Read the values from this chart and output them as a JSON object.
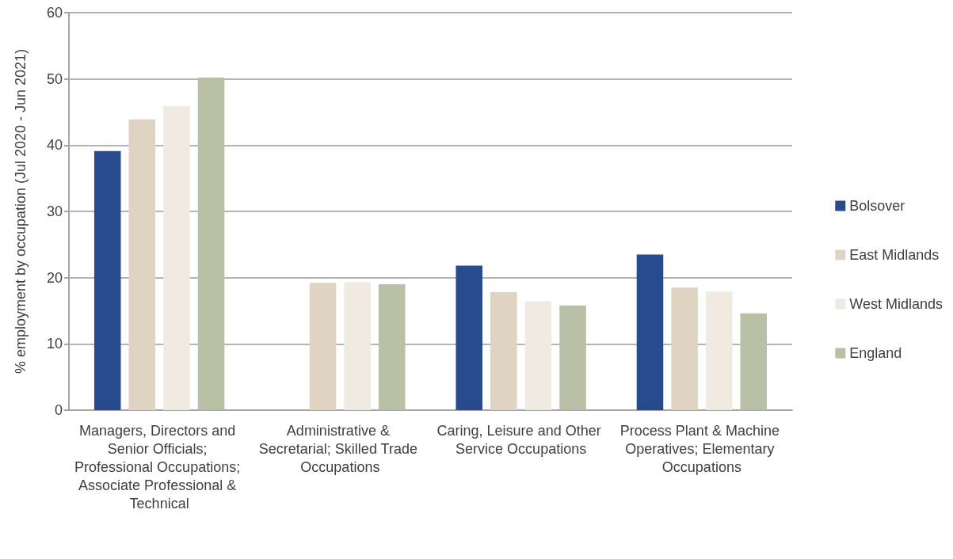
{
  "chart_data": {
    "type": "bar",
    "ylabel": "% employment by occupation (Jul 2020 - Jun 2021)",
    "categories": [
      "Managers, Directors and Senior Officials; Professional Occupations; Associate Professional & Technical",
      "Administrative & Secretarial; Skilled Trade Occupations",
      "Caring, Leisure and Other Service Occupations",
      "Process Plant & Machine Operatives; Elementary Occupations"
    ],
    "series": [
      {
        "name": "Bolsover",
        "color": "#284a8e",
        "values": [
          39.1,
          null,
          21.8,
          23.5
        ]
      },
      {
        "name": "East Midlands",
        "color": "#dfd3c1",
        "values": [
          43.9,
          19.2,
          17.8,
          18.5
        ]
      },
      {
        "name": "West Midlands",
        "color": "#f1eae0",
        "values": [
          45.9,
          19.3,
          16.4,
          17.9
        ]
      },
      {
        "name": "England",
        "color": "#b8c1a6",
        "values": [
          50.2,
          19.0,
          15.8,
          14.6
        ]
      }
    ],
    "ylim": [
      0,
      60
    ],
    "yticks": [
      0,
      10,
      20,
      30,
      40,
      50,
      60
    ],
    "grid": "y",
    "legend": "right"
  }
}
